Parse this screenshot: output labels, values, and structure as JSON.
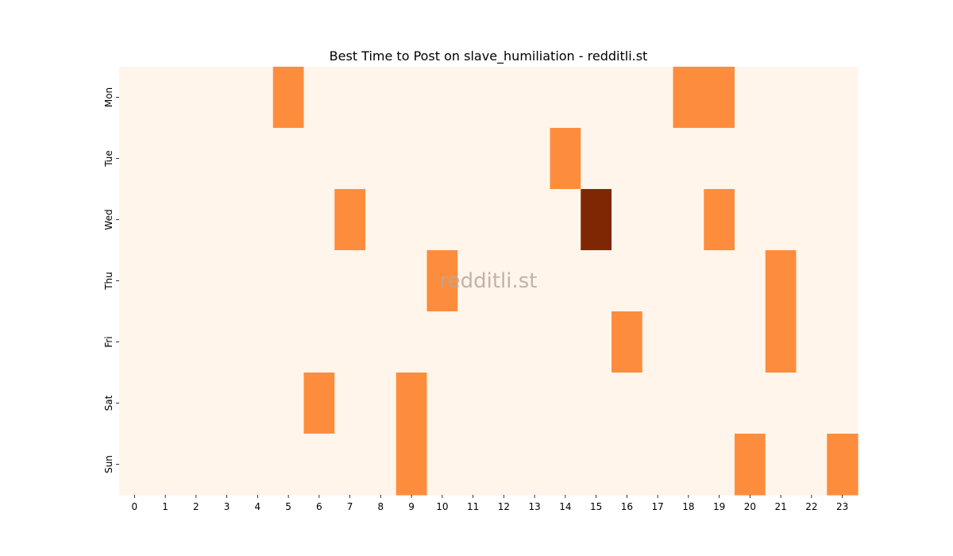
{
  "chart_data": {
    "type": "heatmap",
    "title": "Best Time to Post on slave_humiliation - redditli.st",
    "watermark": "redditli.st",
    "x_labels": [
      "0",
      "1",
      "2",
      "3",
      "4",
      "5",
      "6",
      "7",
      "8",
      "9",
      "10",
      "11",
      "12",
      "13",
      "14",
      "15",
      "16",
      "17",
      "18",
      "19",
      "20",
      "21",
      "22",
      "23"
    ],
    "y_labels": [
      "Mon",
      "Tue",
      "Wed",
      "Thu",
      "Fri",
      "Sat",
      "Sun"
    ],
    "values": [
      [
        0,
        0,
        0,
        0,
        0,
        1,
        0,
        0,
        0,
        0,
        0,
        0,
        0,
        0,
        0,
        0,
        0,
        0,
        1,
        1,
        0,
        0,
        0,
        0
      ],
      [
        0,
        0,
        0,
        0,
        0,
        0,
        0,
        0,
        0,
        0,
        0,
        0,
        0,
        0,
        1,
        0,
        0,
        0,
        0,
        0,
        0,
        0,
        0,
        0
      ],
      [
        0,
        0,
        0,
        0,
        0,
        0,
        0,
        1,
        0,
        0,
        0,
        0,
        0,
        0,
        0,
        2,
        0,
        0,
        0,
        1,
        0,
        0,
        0,
        0
      ],
      [
        0,
        0,
        0,
        0,
        0,
        0,
        0,
        0,
        0,
        0,
        1,
        0,
        0,
        0,
        0,
        0,
        0,
        0,
        0,
        0,
        0,
        1,
        0,
        0
      ],
      [
        0,
        0,
        0,
        0,
        0,
        0,
        0,
        0,
        0,
        0,
        0,
        0,
        0,
        0,
        0,
        0,
        1,
        0,
        0,
        0,
        0,
        1,
        0,
        0
      ],
      [
        0,
        0,
        0,
        0,
        0,
        0,
        1,
        0,
        0,
        1,
        0,
        0,
        0,
        0,
        0,
        0,
        0,
        0,
        0,
        0,
        0,
        0,
        0,
        0
      ],
      [
        0,
        0,
        0,
        0,
        0,
        0,
        0,
        0,
        0,
        1,
        0,
        0,
        0,
        0,
        0,
        0,
        0,
        0,
        0,
        0,
        1,
        0,
        0,
        1
      ]
    ],
    "colormap": [
      "#fff5eb",
      "#fd8d3c",
      "#7f2704"
    ],
    "vmin": 0,
    "vmax": 2,
    "colorbar": false,
    "grid": false
  }
}
